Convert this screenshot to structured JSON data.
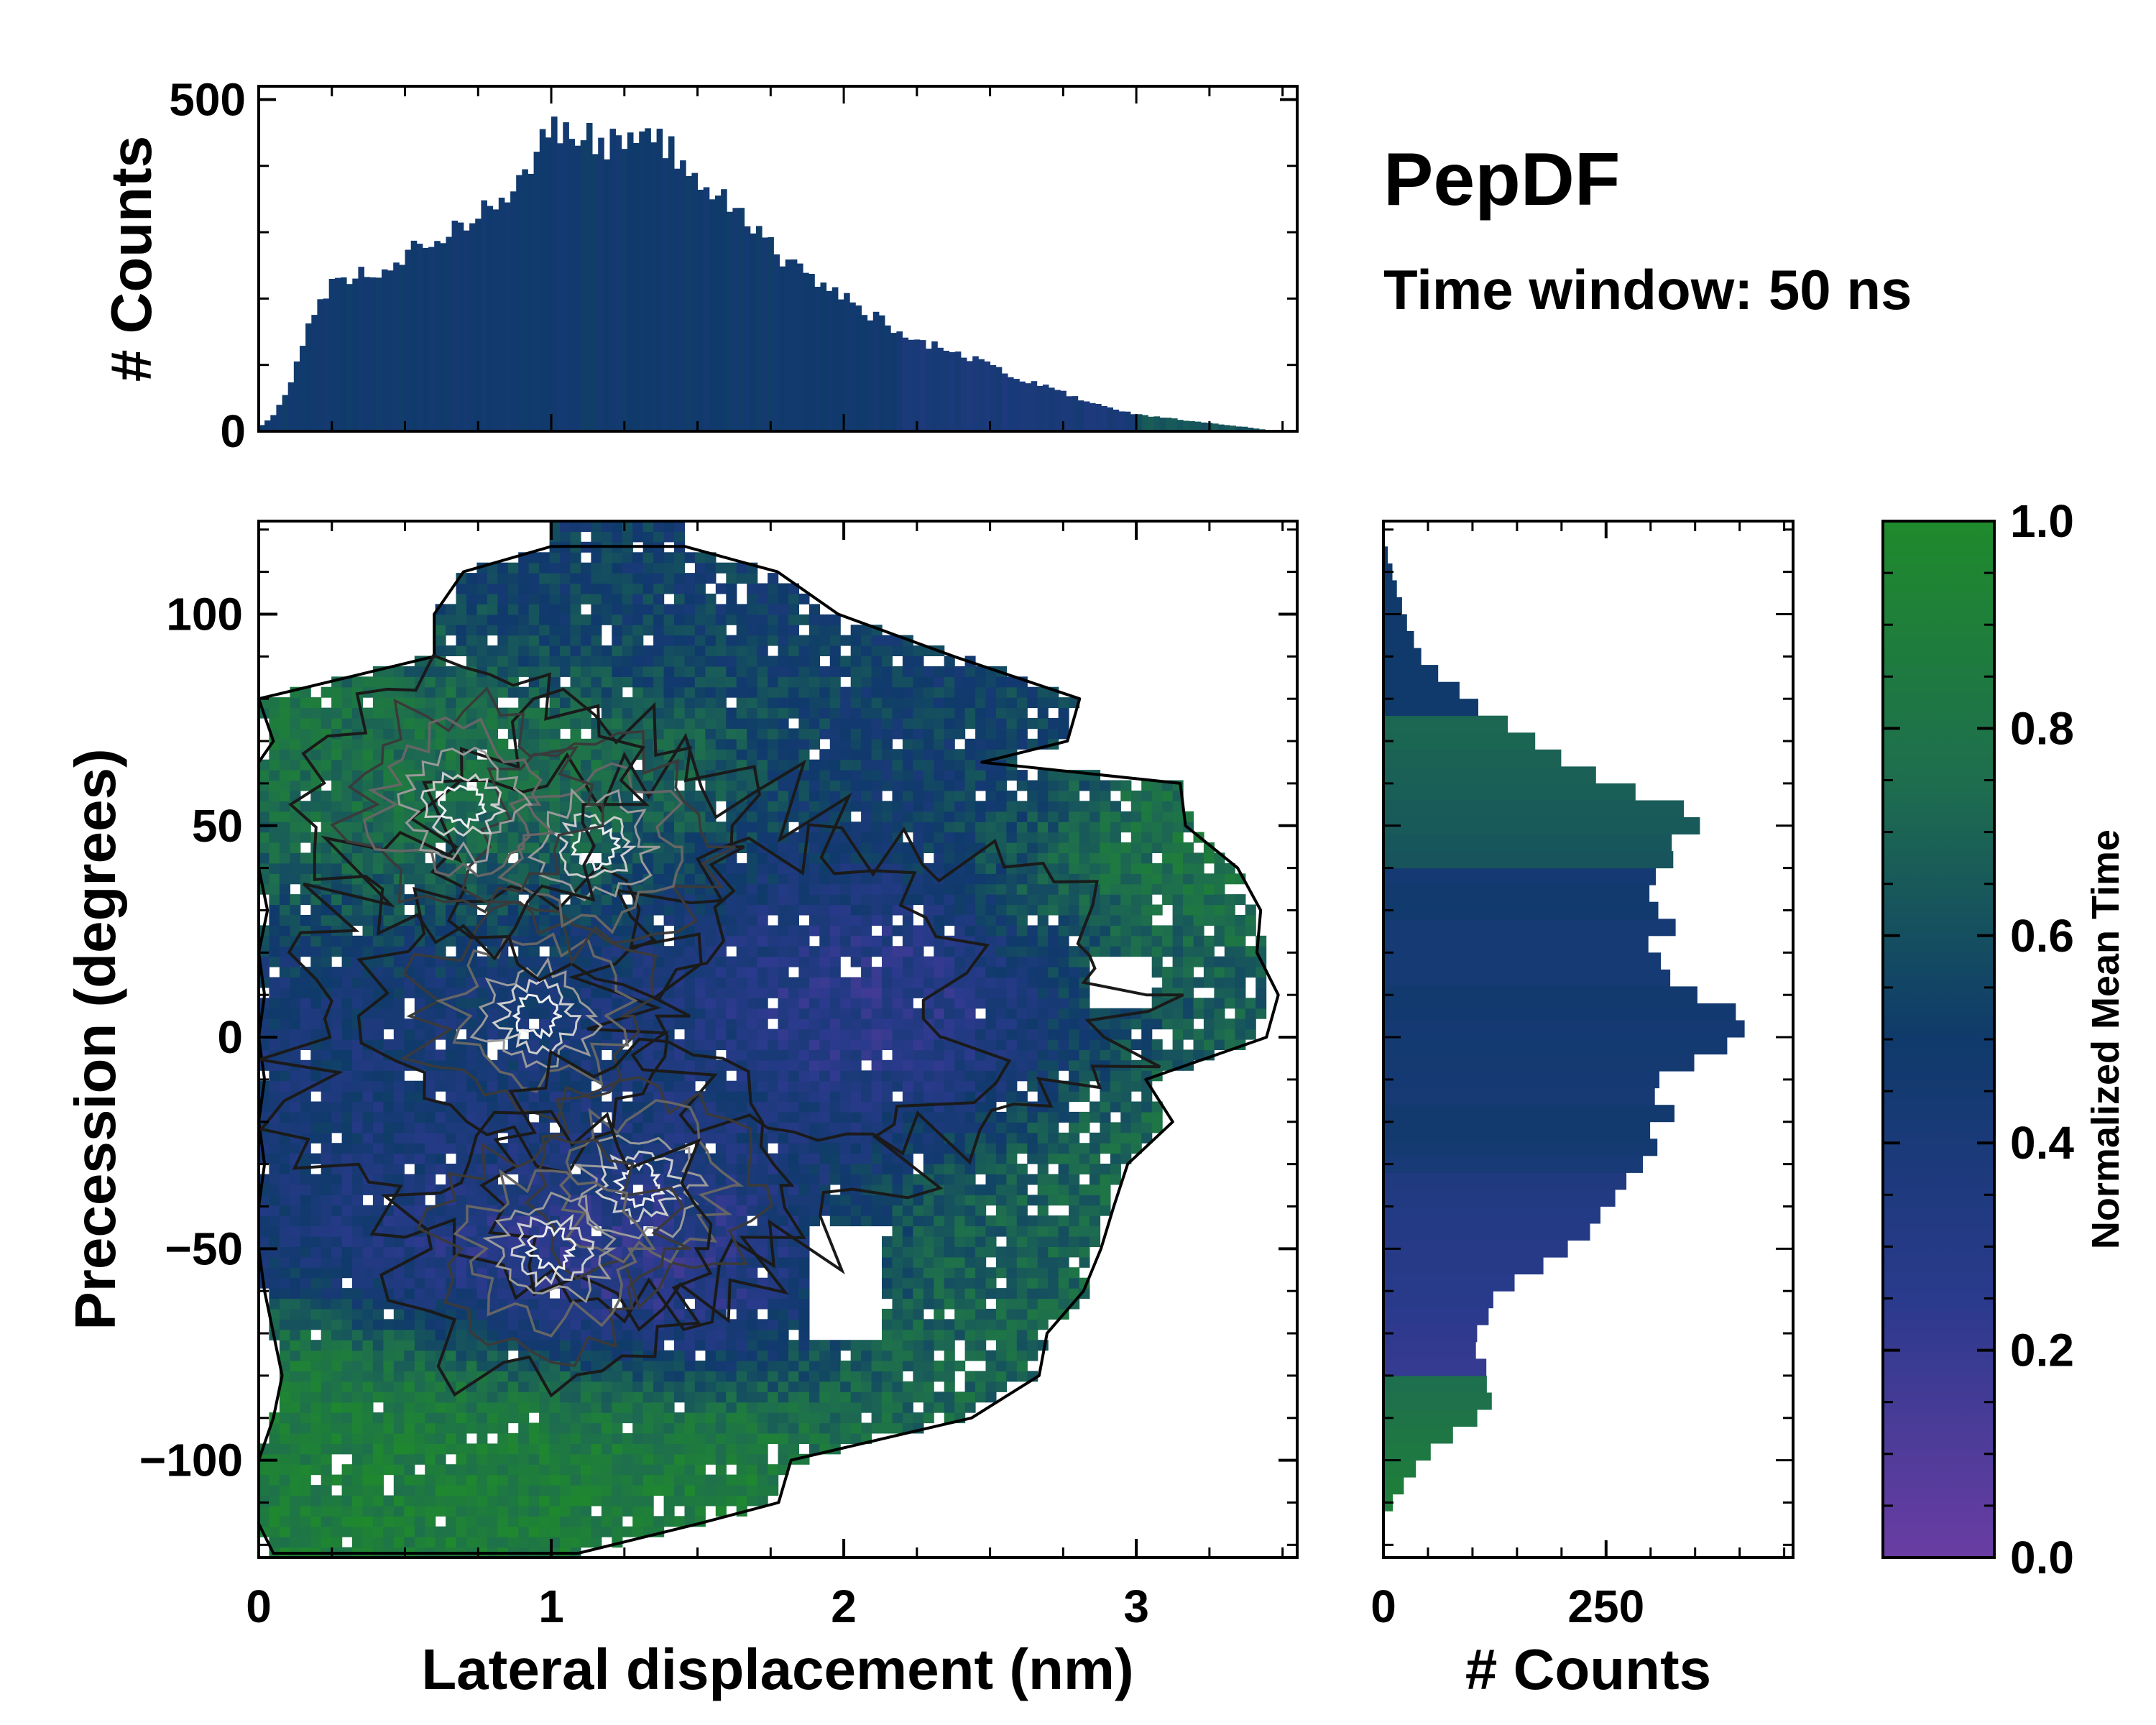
{
  "chart_data": {
    "type": "heatmap",
    "title": "PepDF",
    "subtitle": "Time window: 50 ns",
    "main": {
      "xlabel": "Lateral displacement (nm)",
      "ylabel": "Precession (degrees)",
      "xlim": [
        0,
        3.55
      ],
      "ylim": [
        -123,
        122
      ],
      "xticks": [
        0,
        1,
        2,
        3
      ],
      "xtick_labels": [
        "0",
        "1",
        "2",
        "3"
      ],
      "yticks": [
        100,
        50,
        0,
        -50,
        -100
      ],
      "ytick_labels": [
        "100",
        "50",
        "0",
        "−50",
        "−100"
      ],
      "color_meaning": "Normalized Mean Time",
      "regions": [
        {
          "description": "upper-left lobe",
          "x": [
            0.0,
            1.5
          ],
          "y": [
            30,
            90
          ],
          "mean_time": 0.82
        },
        {
          "description": "upper-middle cap",
          "x": [
            0.6,
            1.8
          ],
          "y": [
            80,
            115
          ],
          "mean_time": 0.5
        },
        {
          "description": "upper-right wing",
          "x": [
            1.9,
            2.8
          ],
          "y": [
            45,
            85
          ],
          "mean_time": 0.5
        },
        {
          "description": "right tip",
          "x": [
            2.5,
            3.45
          ],
          "y": [
            -30,
            65
          ],
          "mean_time": 0.82
        },
        {
          "description": "central core",
          "x": [
            0.0,
            2.5
          ],
          "y": [
            -50,
            50
          ],
          "mean_time": 0.42
        },
        {
          "description": "violet band",
          "x": [
            1.5,
            3.1
          ],
          "y": [
            -10,
            25
          ],
          "mean_time": 0.15
        },
        {
          "description": "lower-middle violet",
          "x": [
            0.7,
            1.9
          ],
          "y": [
            -75,
            -35
          ],
          "mean_time": 0.2
        },
        {
          "description": "lower-right wing",
          "x": [
            1.9,
            2.9
          ],
          "y": [
            -95,
            -35
          ],
          "mean_time": 0.72
        },
        {
          "description": "bottom band",
          "x": [
            0.0,
            1.8
          ],
          "y": [
            -120,
            -75
          ],
          "mean_time": 0.88
        }
      ],
      "contour_peaks": [
        {
          "x": 0.95,
          "y": 5
        },
        {
          "x": 1.15,
          "y": 45
        },
        {
          "x": 1.3,
          "y": -35
        },
        {
          "x": 1.0,
          "y": -50
        },
        {
          "x": 0.7,
          "y": 55
        }
      ]
    },
    "top_histogram": {
      "ylabel": "# Counts",
      "ylim": [
        0,
        520
      ],
      "yticks": [
        0,
        500
      ],
      "ytick_labels": [
        "0",
        "500"
      ],
      "bin_width": 0.02,
      "x_range": [
        0.0,
        3.44
      ],
      "profile_x": [
        0.0,
        0.05,
        0.1,
        0.15,
        0.2,
        0.25,
        0.3,
        0.4,
        0.5,
        0.6,
        0.7,
        0.8,
        0.9,
        1.0,
        1.1,
        1.2,
        1.3,
        1.4,
        1.5,
        1.6,
        1.7,
        1.8,
        1.9,
        2.0,
        2.1,
        2.2,
        2.3,
        2.4,
        2.5,
        2.6,
        2.7,
        2.8,
        2.9,
        3.0,
        3.1,
        3.2,
        3.3,
        3.4,
        3.44
      ],
      "profile_counts": [
        5,
        25,
        60,
        130,
        190,
        225,
        230,
        240,
        265,
        290,
        315,
        340,
        390,
        450,
        440,
        435,
        440,
        430,
        390,
        340,
        300,
        260,
        230,
        200,
        175,
        150,
        130,
        115,
        100,
        80,
        65,
        50,
        35,
        25,
        20,
        15,
        10,
        5,
        2
      ]
    },
    "right_histogram": {
      "xlabel": "# Counts",
      "xlim": [
        0,
        460
      ],
      "xticks": [
        0,
        250
      ],
      "xtick_labels": [
        "0",
        "250"
      ],
      "bin_width_degrees": 4,
      "y_range": [
        -112,
        116
      ],
      "profile_y": [
        -112,
        -100,
        -90,
        -80,
        -70,
        -60,
        -50,
        -40,
        -30,
        -20,
        -10,
        0,
        5,
        10,
        20,
        30,
        40,
        50,
        60,
        70,
        80,
        90,
        100,
        110,
        116
      ],
      "profile_counts": [
        5,
        40,
        110,
        125,
        100,
        140,
        210,
        270,
        300,
        320,
        330,
        400,
        390,
        330,
        310,
        310,
        320,
        360,
        250,
        180,
        90,
        40,
        25,
        10,
        2
      ]
    },
    "colorbar": {
      "label": "Normalized Mean Time",
      "range": [
        0.0,
        1.0
      ],
      "ticks": [
        0.0,
        0.2,
        0.4,
        0.6,
        0.8,
        1.0
      ],
      "tick_labels": [
        "0.0",
        "0.2",
        "0.4",
        "0.6",
        "0.8",
        "1.0"
      ],
      "colors": [
        "#6a3da3",
        "#2a3a8c",
        "#0f3a6b",
        "#1e6e4e",
        "#1f8a2c"
      ]
    }
  }
}
